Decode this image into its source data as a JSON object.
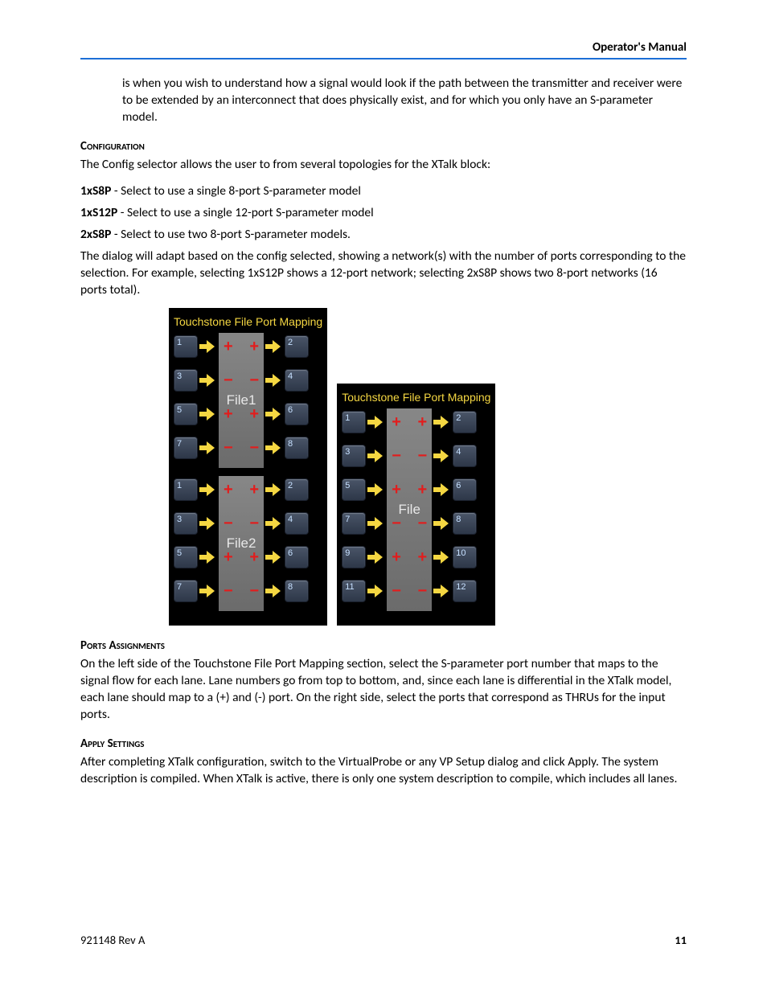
{
  "header": {
    "title": "Operator's Manual"
  },
  "intro": {
    "para": "is when you wish to understand how a signal would look if the path between the transmitter and receiver were to be extended by an interconnect that does physically exist, and for which you only have an S-parameter model."
  },
  "config": {
    "heading": "Configuration",
    "lead": "The Config selector allows the user to from several topologies for the XTalk block:",
    "opts": [
      {
        "name": "1xS8P",
        "desc": " - Select to use a single 8-port S-parameter model"
      },
      {
        "name": "1xS12P",
        "desc": " - Select to use a single 12-port S-parameter model"
      },
      {
        "name": "2xS8P",
        "desc": " - Select to use two 8-port S-parameter models."
      }
    ],
    "tail": "The dialog will adapt based on the config selected, showing a network(s) with the number of ports corresponding to the selection. For example, selecting 1xS12P shows a 12-port network; selecting 2xS8P shows two 8-port networks (16 ports total)."
  },
  "diagram": {
    "title": "Touchstone File Port Mapping",
    "colors": {
      "panel_bg": "#000000",
      "title_color": "#f5d742",
      "arrow_color": "#f5d742",
      "sign_color": "#e21d1d",
      "chip_bg": "#787878",
      "port_text": "#c6e0ff"
    },
    "left_panel": {
      "blocks": [
        {
          "label": "File1",
          "rows": [
            {
              "l": "1",
              "r": "2",
              "sign": "+"
            },
            {
              "l": "3",
              "r": "4",
              "sign": "−"
            },
            {
              "l": "5",
              "r": "6",
              "sign": "+"
            },
            {
              "l": "7",
              "r": "8",
              "sign": "−"
            }
          ]
        },
        {
          "label": "File2",
          "rows": [
            {
              "l": "1",
              "r": "2",
              "sign": "+"
            },
            {
              "l": "3",
              "r": "4",
              "sign": "−"
            },
            {
              "l": "5",
              "r": "6",
              "sign": "+"
            },
            {
              "l": "7",
              "r": "8",
              "sign": "−"
            }
          ]
        }
      ]
    },
    "right_panel": {
      "blocks": [
        {
          "label": "File",
          "rows": [
            {
              "l": "1",
              "r": "2",
              "sign": "+"
            },
            {
              "l": "3",
              "r": "4",
              "sign": "−"
            },
            {
              "l": "5",
              "r": "6",
              "sign": "+"
            },
            {
              "l": "7",
              "r": "8",
              "sign": "−"
            },
            {
              "l": "9",
              "r": "10",
              "sign": "+"
            },
            {
              "l": "11",
              "r": "12",
              "sign": "−"
            }
          ]
        }
      ]
    }
  },
  "ports_assignments": {
    "heading": "Ports Assignments",
    "text": "On the left side of the Touchstone File Port Mapping section, select the S-parameter port number that maps to the signal flow for each lane. Lane numbers go from top to bottom, and, since each lane is differential in the XTalk model, each lane should map to a (+) and (-) port. On the right side, select the ports that correspond as THRUs for the input ports."
  },
  "apply": {
    "heading": "Apply Settings",
    "text": "After completing XTalk configuration, switch to the VirtualProbe or any VP Setup dialog and click Apply. The system description is compiled. When XTalk is active, there is only one system description to compile, which includes all lanes."
  },
  "footer": {
    "rev": "921148 Rev A",
    "page": "11"
  }
}
